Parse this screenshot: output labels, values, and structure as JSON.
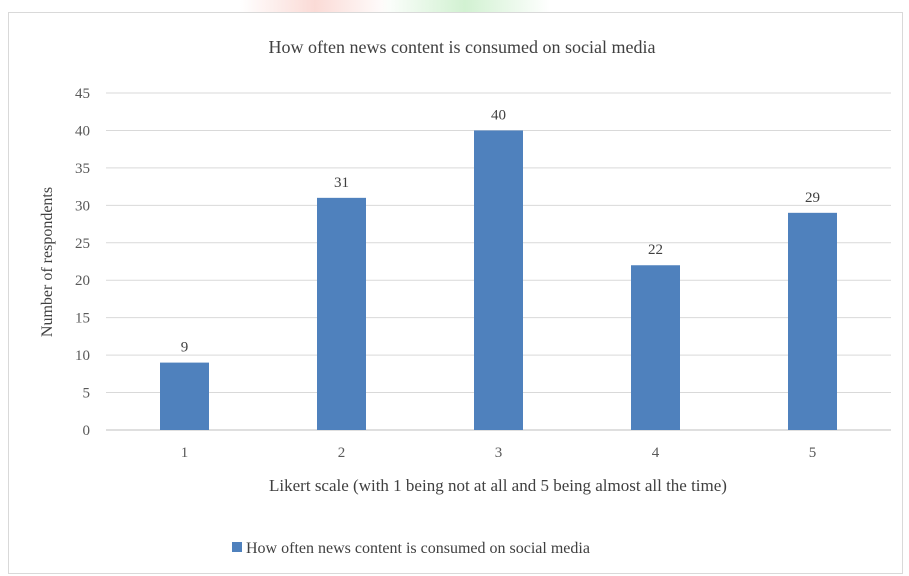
{
  "chart_data": {
    "type": "bar",
    "title": "How often news content is consumed on social media",
    "xlabel": "Likert scale (with 1 being not at all and 5 being almost all the time)",
    "ylabel": "Number of respondents",
    "categories": [
      "1",
      "2",
      "3",
      "4",
      "5"
    ],
    "series": [
      {
        "name": "How often news content is consumed on social media",
        "values": [
          9,
          31,
          40,
          22,
          29
        ],
        "color": "#4f81bd"
      }
    ],
    "ylim": [
      0,
      45
    ],
    "yticks": [
      0,
      5,
      10,
      15,
      20,
      25,
      30,
      35,
      40,
      45
    ],
    "grid": true,
    "legend_position": "bottom",
    "data_labels": true
  }
}
